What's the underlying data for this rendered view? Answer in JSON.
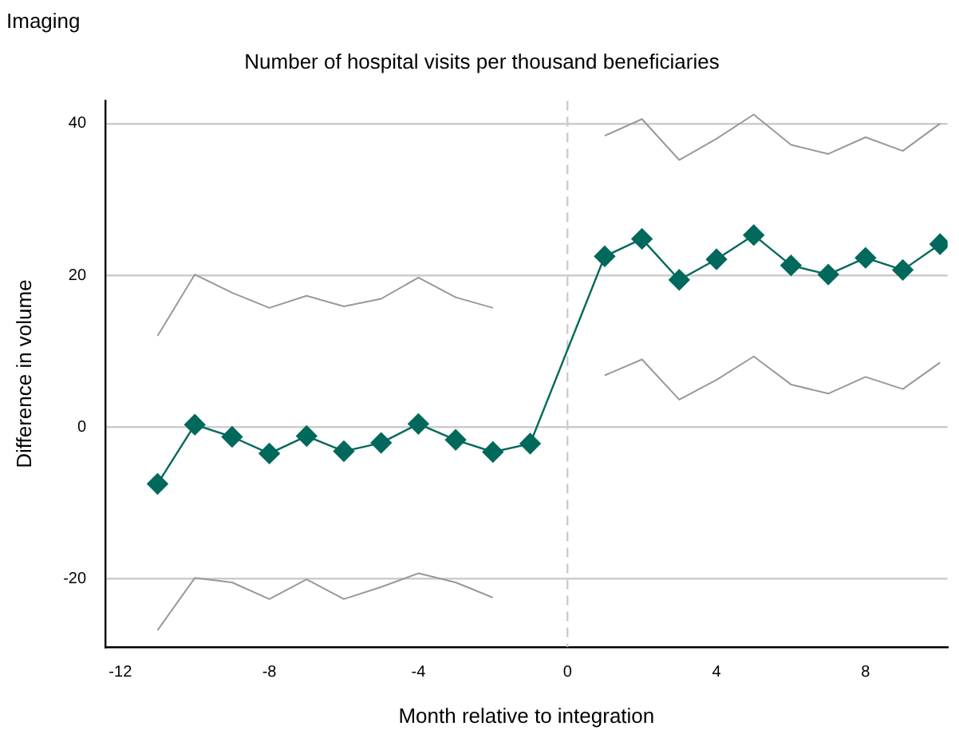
{
  "chart_data": {
    "type": "line",
    "title": "Imaging",
    "subtitle": "Number of hospital visits per thousand beneficiaries",
    "xlabel": "Month relative to integration",
    "ylabel": "Difference in volume",
    "xlim": [
      -12.4,
      10.2
    ],
    "xticks": [
      -12,
      -8,
      -4,
      0,
      4,
      8
    ],
    "ylim": [
      -29,
      43
    ],
    "yticks": [
      -20,
      0,
      20,
      40
    ],
    "grid": "y",
    "legend": false,
    "marker": "diamond",
    "line_style": "solid",
    "ref_lines": [
      {
        "axis": "x",
        "value": 0,
        "color": "#cccccc",
        "line_style": "dashed"
      }
    ],
    "series": [
      {
        "color": "#999999",
        "marker": "none",
        "x": [
          -11,
          -10,
          -9,
          -8,
          -7,
          -6,
          -5,
          -4,
          -3,
          -2
        ],
        "values": [
          12,
          20.1,
          17.7,
          15.7,
          17.3,
          15.9,
          16.9,
          19.7,
          17.1,
          15.7
        ]
      },
      {
        "color": "#999999",
        "marker": "none",
        "x": [
          -11,
          -10,
          -9,
          -8,
          -7,
          -6,
          -5,
          -4,
          -3,
          -2
        ],
        "values": [
          -26.8,
          -19.9,
          -20.5,
          -22.7,
          -20.1,
          -22.7,
          -21.1,
          -19.3,
          -20.5,
          -22.5
        ]
      },
      {
        "color": "#999999",
        "marker": "none",
        "x": [
          1,
          2,
          3,
          4,
          5,
          6,
          7,
          8,
          9,
          10
        ],
        "values": [
          38.4,
          40.6,
          35.2,
          38,
          41.2,
          37.2,
          36,
          38.2,
          36.4,
          40
        ]
      },
      {
        "color": "#999999",
        "marker": "none",
        "x": [
          1,
          2,
          3,
          4,
          5,
          6,
          7,
          8,
          9,
          10
        ],
        "values": [
          6.8,
          8.9,
          3.6,
          6.2,
          9.3,
          5.6,
          4.4,
          6.6,
          5,
          8.5
        ]
      },
      {
        "color": "#00695c",
        "x": [
          -11,
          -10,
          -9,
          -8,
          -7,
          -6,
          -5,
          -4,
          -3,
          -2,
          -1,
          1,
          2,
          3,
          4,
          5,
          6,
          7,
          8,
          9,
          10
        ],
        "values": [
          -7.5,
          0.3,
          -1.3,
          -3.5,
          -1.2,
          -3.2,
          -2.1,
          0.4,
          -1.7,
          -3.3,
          -2.2,
          22.5,
          24.8,
          19.4,
          22.1,
          25.3,
          21.3,
          20.1,
          22.3,
          20.7,
          24.1
        ]
      }
    ]
  }
}
